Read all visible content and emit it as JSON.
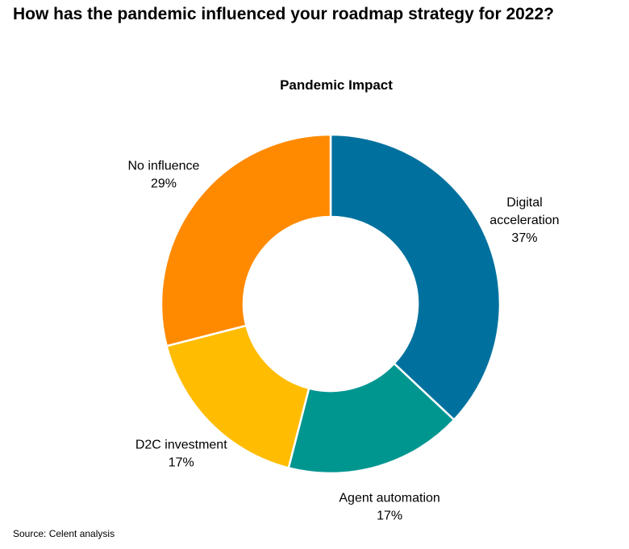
{
  "heading": "How has the pandemic influenced your roadmap strategy for 2022?",
  "source": "Source: Celent analysis",
  "chart_data": {
    "type": "pie",
    "variant": "donut",
    "title": "Pandemic Impact",
    "unit": "%",
    "start_angle_deg": 0,
    "direction": "clockwise",
    "categories": [
      "Digital acceleration",
      "Agent automation",
      "D2C investment",
      "No influence"
    ],
    "values": [
      37,
      17,
      17,
      29
    ],
    "slices": [
      {
        "name": "Digital acceleration",
        "label_lines": [
          "Digital",
          "acceleration"
        ],
        "value": 37,
        "value_label": "37%",
        "color": "#00719e"
      },
      {
        "name": "Agent automation",
        "label_lines": [
          "Agent automation"
        ],
        "value": 17,
        "value_label": "17%",
        "color": "#009690"
      },
      {
        "name": "D2C investment",
        "label_lines": [
          "D2C investment"
        ],
        "value": 17,
        "value_label": "17%",
        "color": "#ffbc00"
      },
      {
        "name": "No influence",
        "label_lines": [
          "No influence"
        ],
        "value": 29,
        "value_label": "29%",
        "color": "#ff8a00"
      }
    ],
    "legend": "none"
  }
}
